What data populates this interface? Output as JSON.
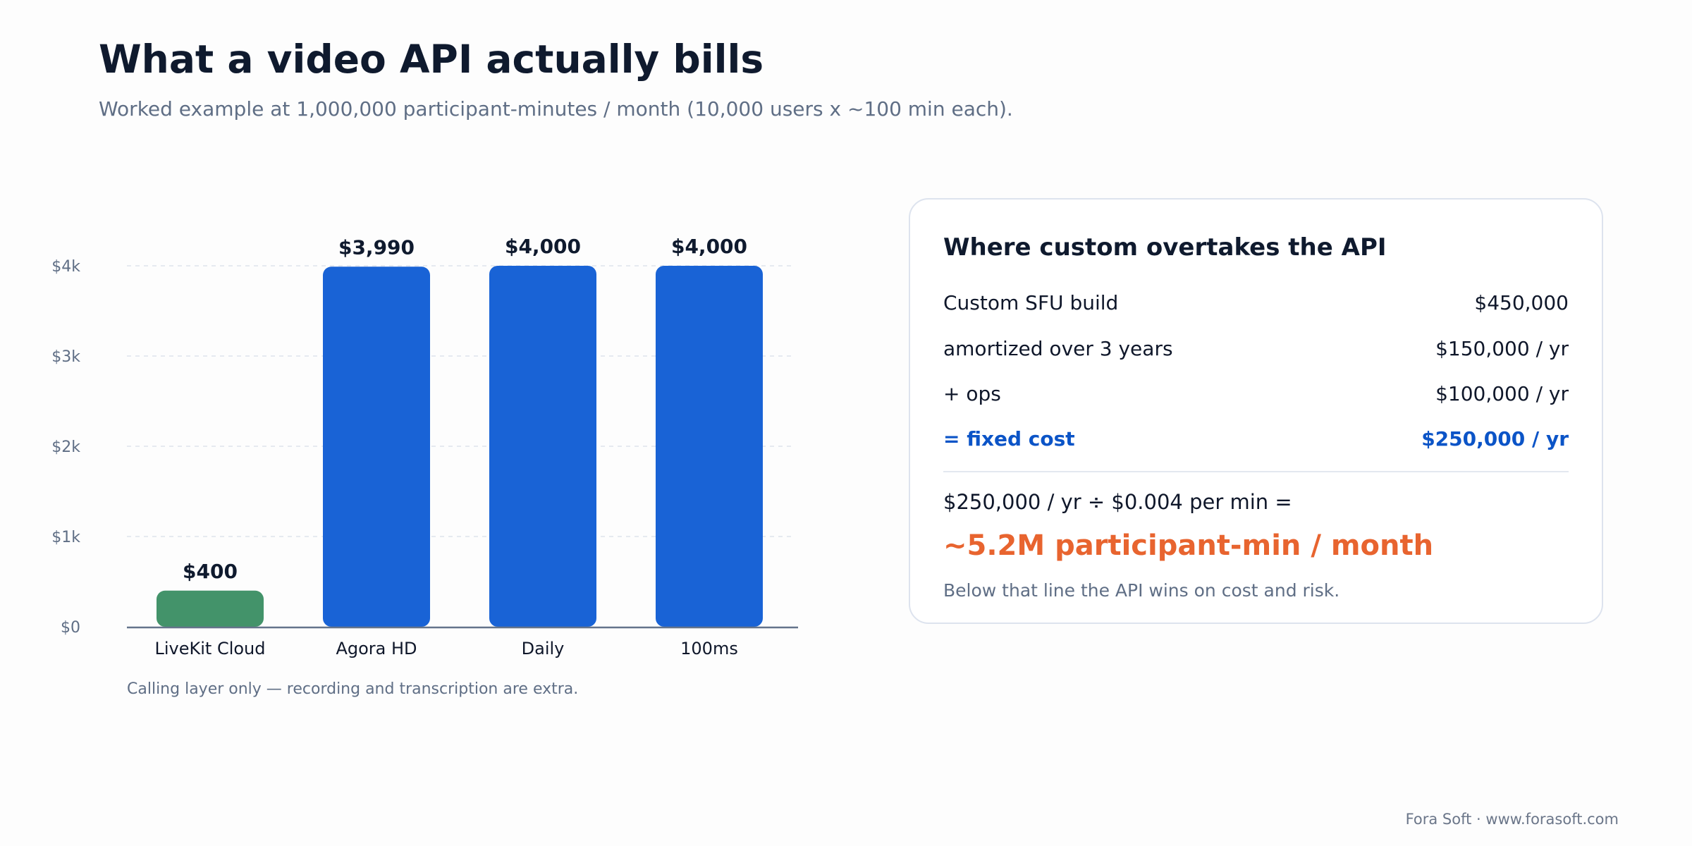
{
  "page": {
    "title": "What a video API actually bills",
    "subtitle": "Worked example at 1,000,000 participant-minutes / month (10,000 users x ~100 min each).",
    "footer": "Fora Soft · www.forasoft.com"
  },
  "chart_data": {
    "type": "bar",
    "title": "",
    "xlabel": "",
    "ylabel": "",
    "categories": [
      "LiveKit Cloud",
      "Agora HD",
      "Daily",
      "100ms"
    ],
    "values": [
      400,
      3990,
      4000,
      4000
    ],
    "value_labels": [
      "$400",
      "$3,990",
      "$4,000",
      "$4,000"
    ],
    "bar_colors": [
      "#43936a",
      "#1963d6",
      "#1963d6",
      "#1963d6"
    ],
    "ylim": [
      0,
      4000
    ],
    "yticks": [
      0,
      1000,
      2000,
      3000,
      4000
    ],
    "ytick_labels": [
      "$0",
      "$1k",
      "$2k",
      "$3k",
      "$4k"
    ],
    "grid": true,
    "legend": "none",
    "note": "Calling layer only — recording and transcription are extra."
  },
  "card": {
    "title": "Where custom overtakes the API",
    "rows": [
      {
        "label": "Custom SFU build",
        "value": "$450,000"
      },
      {
        "label": "amortized over 3 years",
        "value": "$150,000 / yr"
      },
      {
        "label": "+ ops",
        "value": "$100,000 / yr"
      },
      {
        "label": "= fixed cost",
        "value": "$250,000 / yr"
      }
    ],
    "formula": "$250,000 / yr ÷ $0.004 per min =",
    "result": "~5.2M participant-min / month",
    "note": "Below that line the API wins on cost and risk.",
    "colors": {
      "total": "#0b54c7",
      "result": "#e8642f"
    }
  }
}
